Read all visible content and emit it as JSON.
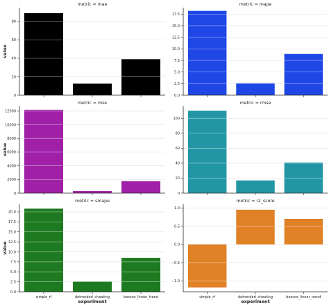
{
  "figure": {
    "xlabel": "experiment",
    "ylabel": "value"
  },
  "chart_data": [
    {
      "type": "bar",
      "title": "metric = mae",
      "categories": [
        "simple_rf",
        "detrended_cheating",
        "boxcox_linear_trend"
      ],
      "values": [
        89,
        12.5,
        39
      ],
      "ylim": [
        0,
        95
      ],
      "yticks": [
        0,
        20,
        40,
        60,
        80
      ],
      "ytick_labels": [
        "0",
        "20",
        "40",
        "60",
        "80"
      ],
      "color": "#000000",
      "grid": true,
      "xlabel": "",
      "ylabel": "value"
    },
    {
      "type": "bar",
      "title": "metric = mape",
      "categories": [
        "simple_rf",
        "detrended_cheating",
        "boxcox_linear_trend"
      ],
      "values": [
        18.2,
        2.6,
        8.9
      ],
      "ylim": [
        0,
        18.9
      ],
      "yticks": [
        0,
        2.5,
        5,
        7.5,
        10,
        12.5,
        15,
        17.5
      ],
      "ytick_labels": [
        "0.0",
        "2.5",
        "5.0",
        "7.5",
        "10.0",
        "12.5",
        "15.0",
        "17.5"
      ],
      "color": "#1f47e6",
      "grid": true,
      "xlabel": "",
      "ylabel": ""
    },
    {
      "type": "bar",
      "title": "metric = mse",
      "categories": [
        "simple_rf",
        "detrended_cheating",
        "boxcox_linear_trend"
      ],
      "values": [
        12200,
        300,
        1750
      ],
      "ylim": [
        0,
        12700
      ],
      "yticks": [
        0,
        2000,
        4000,
        6000,
        8000,
        10000,
        12000
      ],
      "ytick_labels": [
        "0",
        "2000",
        "4000",
        "6000",
        "8000",
        "10000",
        "12000"
      ],
      "color": "#a020a8",
      "grid": true,
      "xlabel": "",
      "ylabel": "value"
    },
    {
      "type": "bar",
      "title": "metric = rmse",
      "categories": [
        "simple_rf",
        "detrended_cheating",
        "boxcox_linear_trend"
      ],
      "values": [
        110,
        17,
        41
      ],
      "ylim": [
        0,
        116
      ],
      "yticks": [
        0,
        20,
        40,
        60,
        80,
        100
      ],
      "ytick_labels": [
        "0",
        "20",
        "40",
        "60",
        "80",
        "100"
      ],
      "color": "#2296a4",
      "grid": true,
      "xlabel": "",
      "ylabel": ""
    },
    {
      "type": "bar",
      "title": "metric = smape",
      "categories": [
        "simple_rf",
        "detrended_cheating",
        "boxcox_linear_trend"
      ],
      "values": [
        20.8,
        2.6,
        8.5
      ],
      "ylim": [
        0,
        21.9
      ],
      "yticks": [
        0,
        2.5,
        5,
        7.5,
        10,
        12.5,
        15,
        17.5,
        20
      ],
      "ytick_labels": [
        "0.0",
        "2.5",
        "5.0",
        "7.5",
        "10.0",
        "12.5",
        "15.0",
        "17.5",
        "20.0"
      ],
      "color": "#1e7a20",
      "grid": true,
      "xlabel": "experiment",
      "ylabel": "value",
      "show_xticklabels": true
    },
    {
      "type": "bar",
      "title": "metric = r2_score",
      "categories": [
        "simple_rf",
        "detrended_cheating",
        "boxcox_linear_trend"
      ],
      "values": [
        -1.18,
        0.95,
        0.7
      ],
      "ylim": [
        -1.3,
        1.1
      ],
      "yticks": [
        -1,
        -0.5,
        0,
        0.5,
        1
      ],
      "ytick_labels": [
        "−1.0",
        "−0.5",
        "0.0",
        "0.5",
        "1.0"
      ],
      "color": "#e08126",
      "grid": true,
      "xlabel": "experiment",
      "ylabel": "",
      "show_xticklabels": true
    }
  ]
}
